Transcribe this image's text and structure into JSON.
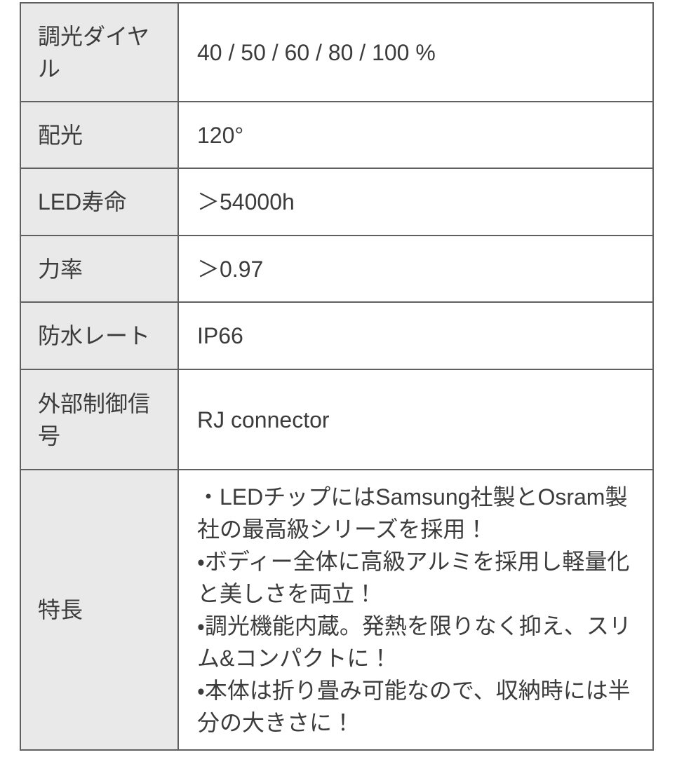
{
  "table": {
    "rows": [
      {
        "label": "調光ダイヤル",
        "value": "40 / 50 / 60 / 80 / 100 %"
      },
      {
        "label": "配光",
        "value": "120°"
      },
      {
        "label": "LED寿命",
        "value": "＞54000h"
      },
      {
        "label": "力率",
        "value": "＞0.97"
      },
      {
        "label": "防水レート",
        "value": "IP66"
      },
      {
        "label": "外部制御信号",
        "value": "RJ connector"
      },
      {
        "label": "特長",
        "value_lines": [
          "・LEDチップにはSamsung社製とOsram製社の最高級シリーズを採用！",
          "・ボディー全体に高級アルミを採用し軽量化と美しさを両立！",
          "・調光機能内蔵。発熱を限りなく抑え、スリム&コンパクトに！",
          "・本体は折り畳み可能なので、収納時には半分の大きさに！"
        ]
      }
    ]
  },
  "colors": {
    "page_bg": "#ffffff",
    "value_bg": "#ffffff",
    "label_bg": "#e9e9e9",
    "border": "#606060",
    "text": "#3c3c3c"
  }
}
